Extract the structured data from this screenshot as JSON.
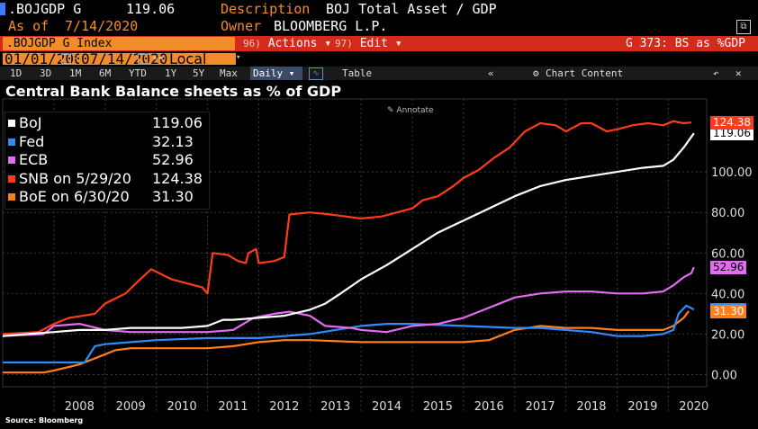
{
  "header": {
    "ticker": ".BOJGDP G",
    "price": "119.06",
    "description_label": "Description",
    "description": "BOJ Total Asset / GDP",
    "as_of_label": "As of",
    "as_of": "7/14/2020",
    "owner_label": "Owner",
    "owner": "BLOOMBERG L.P."
  },
  "toolbar": {
    "index_label": ".BOJGDP G Index",
    "actions_num": "96)",
    "actions_label": "Actions ▾",
    "edit_num": "97)",
    "edit_label": "Edit ▾",
    "right_label": "G 373: BS as %GDP"
  },
  "range": {
    "start": "01/01/2007",
    "end": "07/14/2020",
    "currency": "Local CCY"
  },
  "timeframes": [
    "1D",
    "3D",
    "1M",
    "6M",
    "YTD",
    "1Y",
    "5Y",
    "Max"
  ],
  "periodicity": "Daily ▾",
  "table_label": "Table",
  "chart_content_label": "Chart Content",
  "annotate_label": "Annotate",
  "source": "Source: Bloomberg",
  "colors": {
    "boj": "#ffffff",
    "fed": "#2f8cff",
    "ecb": "#e36cf0",
    "snb": "#ff3b1a",
    "boe": "#ff7f1e"
  },
  "chart_data": {
    "type": "line",
    "title": "Central Bank Balance sheets as % of GDP",
    "xlabel": "",
    "ylabel": "",
    "ylim": [
      -6,
      136
    ],
    "xlim": [
      2007.0,
      2020.75
    ],
    "yticks": [
      "0.00",
      "20.00",
      "40.00",
      "60.00",
      "80.00",
      "100.00"
    ],
    "yticks_values": [
      0,
      20,
      40,
      60,
      80,
      100
    ],
    "xticks": [
      "2008",
      "2009",
      "2010",
      "2011",
      "2012",
      "2013",
      "2014",
      "2015",
      "2016",
      "2017",
      "2018",
      "2019",
      "2020"
    ],
    "series": [
      {
        "key": "boj",
        "name": "BoJ",
        "value": "119.06",
        "tag": "119.06",
        "points": [
          [
            2007.0,
            19
          ],
          [
            2007.5,
            20
          ],
          [
            2008.0,
            21
          ],
          [
            2008.5,
            22
          ],
          [
            2009.0,
            22
          ],
          [
            2009.5,
            23
          ],
          [
            2010.0,
            23
          ],
          [
            2010.5,
            23
          ],
          [
            2011.0,
            24
          ],
          [
            2011.3,
            27
          ],
          [
            2011.5,
            27
          ],
          [
            2012.0,
            28
          ],
          [
            2012.5,
            29
          ],
          [
            2013.0,
            32
          ],
          [
            2013.3,
            35
          ],
          [
            2013.6,
            40
          ],
          [
            2014.0,
            47
          ],
          [
            2014.5,
            54
          ],
          [
            2015.0,
            62
          ],
          [
            2015.5,
            70
          ],
          [
            2016.0,
            76
          ],
          [
            2016.5,
            82
          ],
          [
            2017.0,
            88
          ],
          [
            2017.5,
            93
          ],
          [
            2018.0,
            96
          ],
          [
            2018.5,
            98
          ],
          [
            2019.0,
            100
          ],
          [
            2019.5,
            102
          ],
          [
            2019.9,
            103
          ],
          [
            2020.1,
            106
          ],
          [
            2020.3,
            112
          ],
          [
            2020.5,
            119.06
          ]
        ]
      },
      {
        "key": "fed",
        "name": "Fed",
        "value": "32.13",
        "tag": "32.13",
        "points": [
          [
            2007.0,
            6
          ],
          [
            2008.6,
            6
          ],
          [
            2008.8,
            14
          ],
          [
            2009.0,
            15
          ],
          [
            2009.5,
            16
          ],
          [
            2010.0,
            17
          ],
          [
            2011.0,
            18
          ],
          [
            2012.0,
            18
          ],
          [
            2012.5,
            19
          ],
          [
            2013.0,
            20
          ],
          [
            2013.5,
            22
          ],
          [
            2014.0,
            24
          ],
          [
            2014.5,
            25
          ],
          [
            2015.0,
            25
          ],
          [
            2016.0,
            24
          ],
          [
            2017.0,
            23
          ],
          [
            2017.5,
            23
          ],
          [
            2018.0,
            22
          ],
          [
            2018.5,
            21
          ],
          [
            2019.0,
            19
          ],
          [
            2019.5,
            19
          ],
          [
            2019.9,
            20
          ],
          [
            2020.1,
            22
          ],
          [
            2020.2,
            30
          ],
          [
            2020.35,
            34
          ],
          [
            2020.5,
            32.13
          ]
        ]
      },
      {
        "key": "ecb",
        "name": "ECB",
        "value": "52.96",
        "tag": "52.96",
        "points": [
          [
            2007.0,
            19
          ],
          [
            2007.8,
            20
          ],
          [
            2008.0,
            24
          ],
          [
            2008.5,
            25
          ],
          [
            2009.0,
            22
          ],
          [
            2009.5,
            21
          ],
          [
            2010.0,
            21
          ],
          [
            2010.5,
            21
          ],
          [
            2011.0,
            21
          ],
          [
            2011.5,
            22
          ],
          [
            2011.9,
            28
          ],
          [
            2012.3,
            30
          ],
          [
            2012.6,
            31
          ],
          [
            2013.0,
            29
          ],
          [
            2013.3,
            24
          ],
          [
            2013.8,
            23
          ],
          [
            2014.0,
            22
          ],
          [
            2014.5,
            21
          ],
          [
            2015.0,
            24
          ],
          [
            2015.5,
            25
          ],
          [
            2016.0,
            28
          ],
          [
            2016.5,
            33
          ],
          [
            2017.0,
            38
          ],
          [
            2017.5,
            40
          ],
          [
            2018.0,
            41
          ],
          [
            2018.5,
            41
          ],
          [
            2019.0,
            40
          ],
          [
            2019.5,
            40
          ],
          [
            2019.9,
            41
          ],
          [
            2020.1,
            44
          ],
          [
            2020.3,
            48
          ],
          [
            2020.45,
            50
          ],
          [
            2020.5,
            52.96
          ]
        ]
      },
      {
        "key": "snb",
        "name": "SNB on 5/29/20",
        "value": "124.38",
        "tag": "124.38",
        "points": [
          [
            2007.0,
            20
          ],
          [
            2007.7,
            21
          ],
          [
            2008.0,
            25
          ],
          [
            2008.3,
            28
          ],
          [
            2008.8,
            30
          ],
          [
            2009.0,
            35
          ],
          [
            2009.4,
            40
          ],
          [
            2009.6,
            45
          ],
          [
            2009.9,
            52
          ],
          [
            2010.3,
            47
          ],
          [
            2010.6,
            45
          ],
          [
            2010.9,
            43
          ],
          [
            2011.0,
            40
          ],
          [
            2011.1,
            60
          ],
          [
            2011.4,
            59
          ],
          [
            2011.6,
            56
          ],
          [
            2011.75,
            55
          ],
          [
            2011.8,
            60
          ],
          [
            2011.95,
            62
          ],
          [
            2012.0,
            55
          ],
          [
            2012.3,
            56
          ],
          [
            2012.5,
            58
          ],
          [
            2012.6,
            79
          ],
          [
            2013.0,
            80
          ],
          [
            2013.4,
            79
          ],
          [
            2013.7,
            78
          ],
          [
            2014.0,
            77
          ],
          [
            2014.4,
            78
          ],
          [
            2014.7,
            80
          ],
          [
            2015.0,
            82
          ],
          [
            2015.2,
            86
          ],
          [
            2015.5,
            88
          ],
          [
            2015.8,
            93
          ],
          [
            2016.0,
            97
          ],
          [
            2016.3,
            101
          ],
          [
            2016.6,
            107
          ],
          [
            2016.9,
            112
          ],
          [
            2017.2,
            120
          ],
          [
            2017.5,
            124
          ],
          [
            2017.8,
            123
          ],
          [
            2018.0,
            120
          ],
          [
            2018.3,
            124
          ],
          [
            2018.5,
            124
          ],
          [
            2018.8,
            120
          ],
          [
            2019.0,
            121
          ],
          [
            2019.3,
            123
          ],
          [
            2019.6,
            124
          ],
          [
            2019.9,
            123
          ],
          [
            2020.1,
            125
          ],
          [
            2020.3,
            124
          ],
          [
            2020.45,
            124.38
          ]
        ]
      },
      {
        "key": "boe",
        "name": "BoE on 6/30/20",
        "value": "31.30",
        "tag": "31.30",
        "points": [
          [
            2007.0,
            1
          ],
          [
            2007.8,
            1
          ],
          [
            2008.0,
            2
          ],
          [
            2008.5,
            5
          ],
          [
            2008.9,
            9
          ],
          [
            2009.2,
            12
          ],
          [
            2009.5,
            13
          ],
          [
            2010.0,
            13
          ],
          [
            2010.5,
            13
          ],
          [
            2011.0,
            13
          ],
          [
            2011.5,
            14
          ],
          [
            2012.0,
            16
          ],
          [
            2012.5,
            17
          ],
          [
            2013.0,
            17
          ],
          [
            2014.0,
            16
          ],
          [
            2015.0,
            16
          ],
          [
            2016.0,
            16
          ],
          [
            2016.5,
            17
          ],
          [
            2017.0,
            22
          ],
          [
            2017.5,
            24
          ],
          [
            2018.0,
            23
          ],
          [
            2018.5,
            23
          ],
          [
            2019.0,
            22
          ],
          [
            2019.5,
            22
          ],
          [
            2019.9,
            22
          ],
          [
            2020.1,
            24
          ],
          [
            2020.3,
            28
          ],
          [
            2020.4,
            31.3
          ]
        ]
      }
    ]
  }
}
